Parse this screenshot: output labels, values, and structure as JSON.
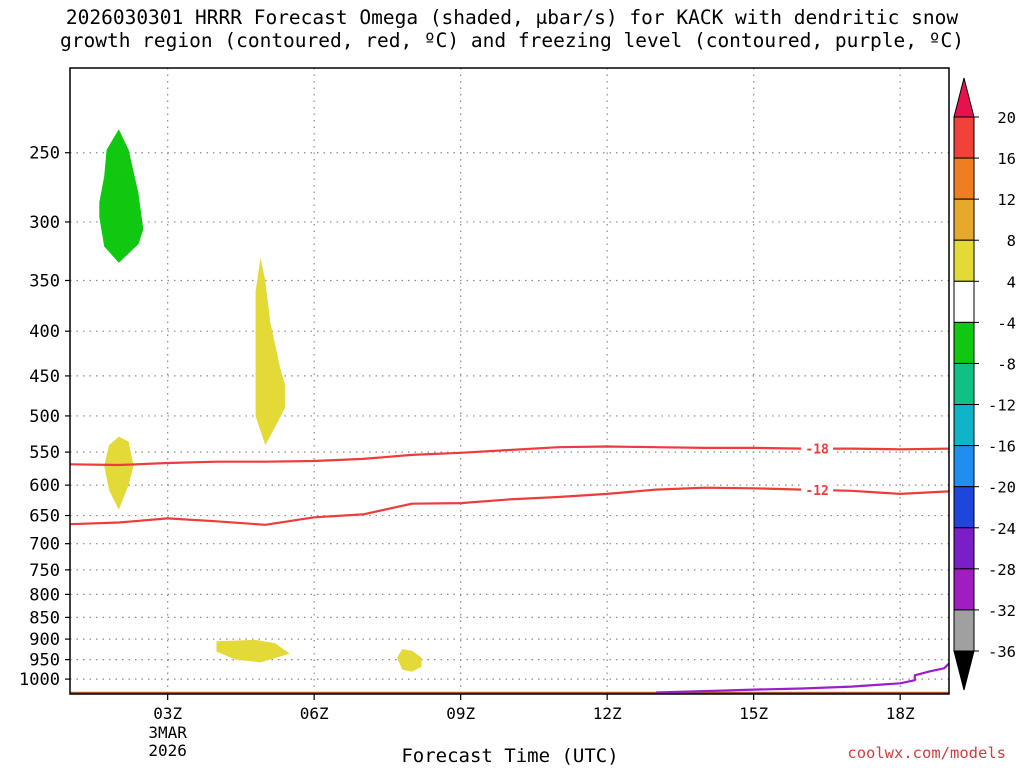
{
  "title": {
    "line1": "2026030301 HRRR Forecast Omega (shaded, μbar/s) for KACK with dendritic snow",
    "line2": "growth region (contoured, red, ºC) and freezing level (contoured, purple, ºC)"
  },
  "credit": "coolwx.com/models",
  "chart_data": {
    "type": "contour",
    "xlabel": "Forecast Time (UTC)",
    "x_range_hours": [
      1,
      19
    ],
    "y_axis": {
      "scale": "log-pressure",
      "range": [
        1040,
        200
      ],
      "ticks": [
        250,
        300,
        350,
        400,
        450,
        500,
        550,
        600,
        650,
        700,
        750,
        800,
        850,
        900,
        950,
        1000
      ]
    },
    "x_ticks": [
      {
        "hour": 3,
        "label": "03Z",
        "date": "3MAR",
        "year": "2026"
      },
      {
        "hour": 6,
        "label": "06Z"
      },
      {
        "hour": 9,
        "label": "09Z"
      },
      {
        "hour": 12,
        "label": "12Z"
      },
      {
        "hour": 15,
        "label": "15Z"
      },
      {
        "hour": 18,
        "label": "18Z"
      }
    ],
    "grid": true,
    "colorbar": {
      "labels": [
        "20",
        "16",
        "12",
        "8",
        "4",
        "-4",
        "-8",
        "-12",
        "-16",
        "-20",
        "-24",
        "-28",
        "-32",
        "-36"
      ],
      "colors": [
        "#e8114f",
        "#f0423a",
        "#ef7e22",
        "#e6a92c",
        "#e3d937",
        "#ffffff",
        "#10c810",
        "#10c085",
        "#10b4c8",
        "#1e8ef0",
        "#1e46dc",
        "#7a1ec8",
        "#a01ec0",
        "#a0a0a0",
        "#000000"
      ]
    },
    "contours": [
      {
        "label": "-18",
        "color": "#ee3b3b",
        "points": [
          [
            1,
            568
          ],
          [
            2,
            569
          ],
          [
            3,
            566
          ],
          [
            4,
            564
          ],
          [
            5,
            564
          ],
          [
            6,
            563
          ],
          [
            7,
            560
          ],
          [
            8,
            554
          ],
          [
            9,
            551
          ],
          [
            10,
            547
          ],
          [
            11,
            543
          ],
          [
            12,
            542
          ],
          [
            13,
            543
          ],
          [
            14,
            544
          ],
          [
            15,
            544
          ],
          [
            16,
            545
          ],
          [
            17,
            545
          ],
          [
            18,
            546
          ],
          [
            19,
            545
          ]
        ]
      },
      {
        "label": "-12",
        "color": "#ee3b3b",
        "points": [
          [
            1,
            665
          ],
          [
            2,
            662
          ],
          [
            3,
            655
          ],
          [
            4,
            660
          ],
          [
            5,
            666
          ],
          [
            6,
            653
          ],
          [
            7,
            648
          ],
          [
            8,
            630
          ],
          [
            9,
            629
          ],
          [
            10,
            623
          ],
          [
            11,
            619
          ],
          [
            12,
            614
          ],
          [
            13,
            607
          ],
          [
            14,
            604
          ],
          [
            15,
            605
          ],
          [
            16,
            607
          ],
          [
            17,
            609
          ],
          [
            18,
            614
          ],
          [
            19,
            610
          ]
        ]
      },
      {
        "label": "",
        "color": "#9b1ec8",
        "points": [
          [
            13,
            1036
          ],
          [
            14,
            1032
          ],
          [
            15,
            1028
          ],
          [
            16,
            1025
          ],
          [
            17,
            1020
          ],
          [
            18,
            1011
          ],
          [
            18.3,
            1003
          ],
          [
            18.3,
            990
          ],
          [
            18.6,
            980
          ],
          [
            18.9,
            972
          ],
          [
            19,
            960
          ]
        ]
      }
    ],
    "regions": [
      {
        "value_range": "-4 to -8",
        "color": "#10c810",
        "points": [
          [
            2.0,
            235
          ],
          [
            2.2,
            248
          ],
          [
            2.4,
            278
          ],
          [
            2.5,
            306
          ],
          [
            2.4,
            318
          ],
          [
            2.2,
            326
          ],
          [
            2.0,
            334
          ],
          [
            1.7,
            320
          ],
          [
            1.6,
            296
          ],
          [
            1.6,
            285
          ],
          [
            1.7,
            266
          ],
          [
            1.75,
            248
          ]
        ]
      },
      {
        "value_range": "4 to 8",
        "color": "#e3d937",
        "points": [
          [
            4.9,
            330
          ],
          [
            5.0,
            350
          ],
          [
            5.1,
            390
          ],
          [
            5.3,
            440
          ],
          [
            5.4,
            460
          ],
          [
            5.4,
            490
          ],
          [
            5.2,
            515
          ],
          [
            5.0,
            540
          ],
          [
            4.8,
            500
          ],
          [
            4.8,
            420
          ],
          [
            4.8,
            360
          ]
        ]
      },
      {
        "value_range": "4 to 8",
        "color": "#e3d937",
        "points": [
          [
            2.0,
            528
          ],
          [
            2.2,
            535
          ],
          [
            2.3,
            570
          ],
          [
            2.2,
            600
          ],
          [
            2.0,
            640
          ],
          [
            1.8,
            608
          ],
          [
            1.7,
            570
          ],
          [
            1.8,
            540
          ]
        ]
      },
      {
        "value_range": "4 to 8",
        "color": "#e3d937",
        "points": [
          [
            4.0,
            905
          ],
          [
            4.8,
            902
          ],
          [
            5.2,
            910
          ],
          [
            5.5,
            935
          ],
          [
            4.9,
            957
          ],
          [
            4.4,
            950
          ],
          [
            4.0,
            930
          ]
        ]
      },
      {
        "value_range": "4 to 8",
        "color": "#e3d937",
        "points": [
          [
            7.8,
            924
          ],
          [
            8.0,
            928
          ],
          [
            8.2,
            945
          ],
          [
            8.2,
            968
          ],
          [
            8.0,
            981
          ],
          [
            7.8,
            975
          ],
          [
            7.7,
            945
          ]
        ]
      }
    ],
    "terrain": {
      "color": "#a05a2c",
      "pressure_top": 1034,
      "pressure_bottom": 1040
    }
  }
}
